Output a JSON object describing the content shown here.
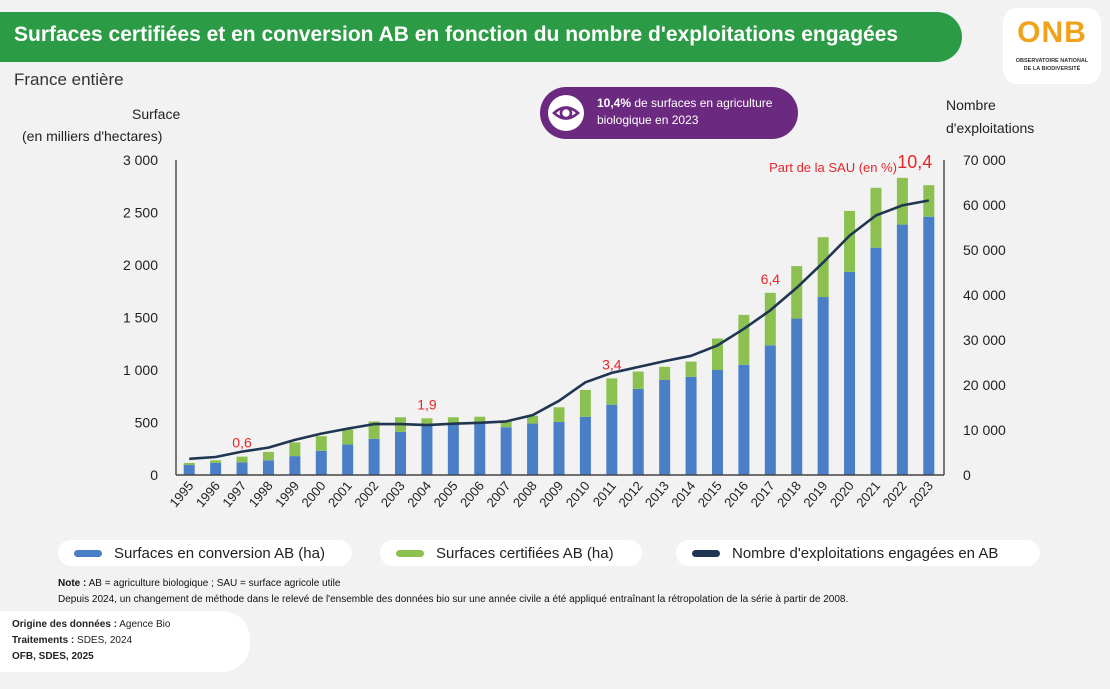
{
  "header": {
    "title": "Surfaces certifiées et en conversion AB en fonction du nombre d'exploitations engagées",
    "subtitle": "France entière"
  },
  "logo": {
    "name": "ONB",
    "line1": "OBSERVATOIRE NATIONAL",
    "line2": "DE LA BIODIVERSITÉ"
  },
  "callout": {
    "icon": "eye-icon",
    "bold": "10,4%",
    "text": " de surfaces en agriculture biologique en 2023"
  },
  "axes": {
    "left_label_1": "Surface",
    "left_label_2": "(en milliers d'hectares)",
    "right_label_1": "Nombre",
    "right_label_2": "d'exploitations"
  },
  "sau_label": "Part de la SAU (en %)",
  "legend": {
    "conversion": "Surfaces en conversion AB (ha)",
    "certified": "Surfaces certifiées AB (ha)",
    "farms": "Nombre d'exploitations engagées en AB"
  },
  "notes": {
    "note_bold": "Note :",
    "note_text": " AB = agriculture biologique ; SAU = surface agricole utile",
    "note2": "Depuis 2024, un changement de méthode dans le relevé de l'ensemble des données bio sur une année civile a été appliqué entraînant la rétropolation de la série à partir de 2008."
  },
  "source": {
    "origin_bold": "Origine des données :",
    "origin": " Agence Bio",
    "treat_bold": "Traitements :",
    "treat": " SDES,  2024",
    "credit": "OFB, SDES, 2025"
  },
  "colors": {
    "conversion": "#4a7fc8",
    "certified": "#8cc152",
    "farms": "#1f3552",
    "annotation": "#e8262a",
    "title_bg": "#2c9b45",
    "callout_bg": "#6b2a80"
  },
  "chart_data": {
    "type": "bar",
    "categories": [
      "1995",
      "1996",
      "1997",
      "1998",
      "1999",
      "2000",
      "2001",
      "2002",
      "2003",
      "2004",
      "2005",
      "2006",
      "2007",
      "2008",
      "2009",
      "2010",
      "2011",
      "2012",
      "2013",
      "2014",
      "2015",
      "2016",
      "2017",
      "2018",
      "2019",
      "2020",
      "2021",
      "2022",
      "2023"
    ],
    "series": [
      {
        "name": "Surfaces en conversion AB (ha)",
        "axis": "left",
        "kind": "bar-stack",
        "values": [
          95,
          115,
          120,
          140,
          180,
          230,
          290,
          345,
          410,
          470,
          490,
          500,
          455,
          490,
          505,
          555,
          670,
          820,
          905,
          935,
          1000,
          1050,
          1235,
          1490,
          1695,
          1935,
          2165,
          2385,
          2460
        ]
      },
      {
        "name": "Surfaces certifiées AB (ha)",
        "axis": "left",
        "kind": "bar-stack",
        "values": [
          20,
          25,
          55,
          80,
          130,
          140,
          145,
          165,
          140,
          70,
          60,
          55,
          55,
          75,
          140,
          255,
          250,
          165,
          125,
          145,
          300,
          475,
          500,
          500,
          570,
          580,
          570,
          445,
          300
        ]
      },
      {
        "name": "Nombre d'exploitations engagées en AB",
        "axis": "right",
        "kind": "line",
        "values": [
          3600,
          4000,
          5200,
          6100,
          7800,
          9200,
          10300,
          11300,
          11300,
          11100,
          11400,
          11600,
          11900,
          13300,
          16500,
          20600,
          22700,
          24000,
          25300,
          26500,
          28800,
          32500,
          36600,
          41600,
          47200,
          53200,
          57700,
          59900,
          61000
        ]
      }
    ],
    "annotations": [
      {
        "category": "1997",
        "text": "0,6"
      },
      {
        "category": "2004",
        "text": "1,9"
      },
      {
        "category": "2011",
        "text": "3,4"
      },
      {
        "category": "2017",
        "text": "6,4"
      },
      {
        "category": "2023",
        "text": "10,4"
      }
    ],
    "ylim_left": [
      0,
      3000
    ],
    "ylim_right": [
      0,
      70000
    ],
    "left_ticks": [
      "0",
      "500",
      "1 000",
      "1 500",
      "2 000",
      "2 500",
      "3 000"
    ],
    "right_ticks": [
      "0",
      "10 000",
      "20 000",
      "30 000",
      "40 000",
      "50 000",
      "60 000",
      "70 000"
    ]
  }
}
